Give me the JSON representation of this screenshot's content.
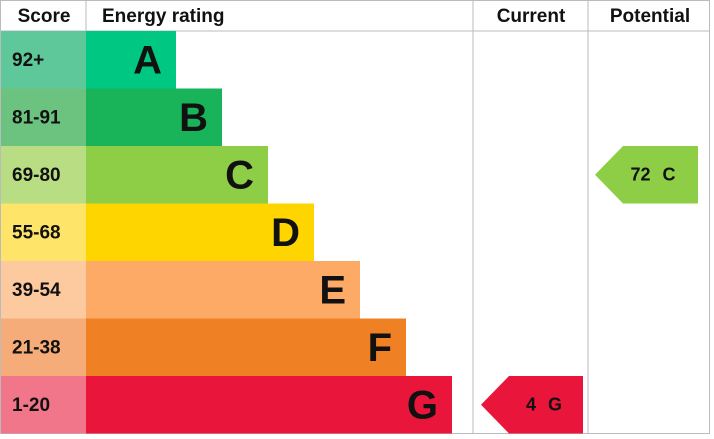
{
  "header": {
    "score": "Score",
    "rating": "Energy rating",
    "current": "Current",
    "potential": "Potential"
  },
  "bands": [
    {
      "score": "92+",
      "letter": "A",
      "color": "#00c781",
      "score_color": "#5fc89a"
    },
    {
      "score": "81-91",
      "letter": "B",
      "color": "#19b459",
      "score_color": "#6cc37f"
    },
    {
      "score": "69-80",
      "letter": "C",
      "color": "#8dce46",
      "score_color": "#b8dd83"
    },
    {
      "score": "55-68",
      "letter": "D",
      "color": "#ffd500",
      "score_color": "#ffe46a"
    },
    {
      "score": "39-54",
      "letter": "E",
      "color": "#fcaa65",
      "score_color": "#fdcaa0"
    },
    {
      "score": "21-38",
      "letter": "F",
      "color": "#ef8023",
      "score_color": "#f5ac78"
    },
    {
      "score": "1-20",
      "letter": "G",
      "color": "#e9153b",
      "score_color": "#f1768a"
    }
  ],
  "current": {
    "value": 4,
    "letter": "G"
  },
  "potential": {
    "value": 72,
    "letter": "C"
  }
}
